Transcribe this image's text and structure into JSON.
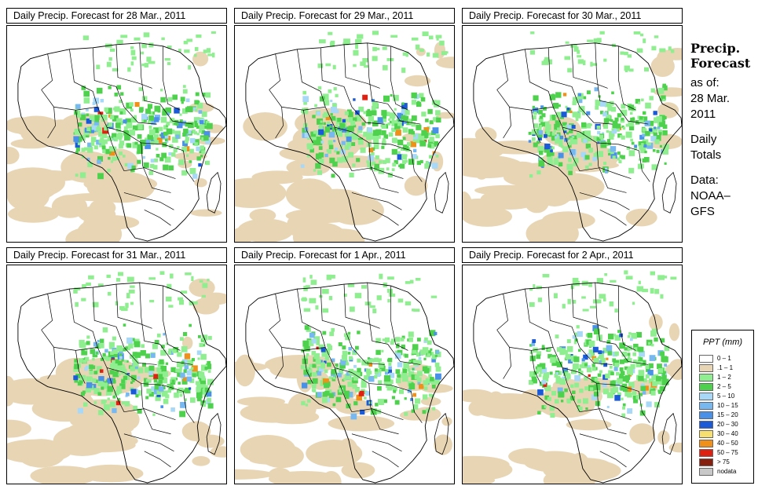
{
  "panels": [
    {
      "title": "Daily Precip. Forecast for  28 Mar., 2011"
    },
    {
      "title": "Daily Precip. Forecast for  29 Mar., 2011"
    },
    {
      "title": "Daily Precip. Forecast for  30 Mar., 2011"
    },
    {
      "title": "Daily Precip. Forecast for  31 Mar., 2011"
    },
    {
      "title": "Daily Precip. Forecast for  1 Apr., 2011"
    },
    {
      "title": "Daily Precip. Forecast for  2 Apr., 2011"
    }
  ],
  "sidebar": {
    "heading_line1": "Precip.",
    "heading_line2": "Forecast",
    "asof_line1": "as of:",
    "asof_line2": "28 Mar.",
    "asof_line3": "2011",
    "totals_line1": "Daily",
    "totals_line2": "Totals",
    "data_line1": "Data:",
    "data_line2": "NOAA–",
    "data_line3": "GFS"
  },
  "legend": {
    "title": "PPT (mm)",
    "items": [
      {
        "label": "0 – 1",
        "color": "#ffffff"
      },
      {
        "label": ".1 – 1",
        "color": "#e8d5b4"
      },
      {
        "label": "1 – 2",
        "color": "#8fee8f"
      },
      {
        "label": "2 – 5",
        "color": "#4ed24e"
      },
      {
        "label": "5 – 10",
        "color": "#a8d8f8"
      },
      {
        "label": "10 – 15",
        "color": "#78b8f0"
      },
      {
        "label": "15 – 20",
        "color": "#4890e8"
      },
      {
        "label": "20 – 30",
        "color": "#1a5ad8"
      },
      {
        "label": "30 – 40",
        "color": "#f8e070"
      },
      {
        "label": "40 – 50",
        "color": "#f09018"
      },
      {
        "label": "50 – 75",
        "color": "#e02010"
      },
      {
        "label": "> 75",
        "color": "#882010"
      },
      {
        "label": "nodata",
        "color": "#c8c8c8"
      }
    ]
  }
}
